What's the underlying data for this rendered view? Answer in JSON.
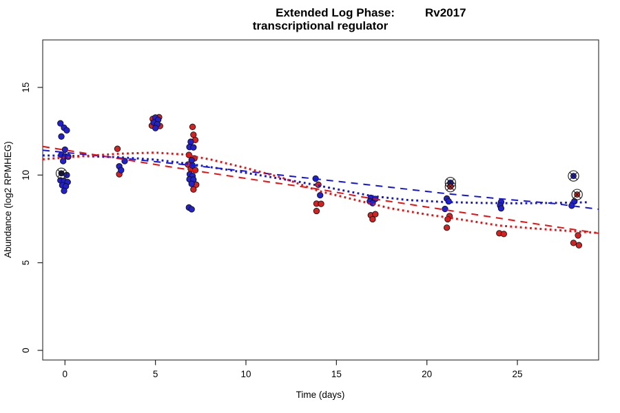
{
  "title": {
    "prefix": "Extended Log Phase:",
    "gene": "Rv2017",
    "subtitle": "transcriptional regulator"
  },
  "chart_data": {
    "type": "scatter",
    "title": "Extended Log Phase: Rv2017 — transcriptional regulator",
    "xlabel": "Time  (days)",
    "ylabel": "Abundance  (log2 RPMHEG)",
    "xlim": [
      -1.25,
      29.5
    ],
    "ylim": [
      -0.55,
      17.7
    ],
    "x_ticks": [
      0,
      5,
      10,
      15,
      20,
      25
    ],
    "y_ticks": [
      0,
      5,
      10,
      15
    ],
    "grid": false,
    "legend": "none",
    "colors": {
      "red_point": "#d92020",
      "blue_point": "#2121d2",
      "dark_point": "#15154a",
      "red_line": "#ee0e0e",
      "blue_line": "#1414e0",
      "marker_stroke": "#111111"
    },
    "series": [
      {
        "name": "red-samples",
        "marker": "filled-circle",
        "color_key": "red_point",
        "points": [
          [
            2.9,
            11.5
          ],
          [
            3.0,
            10.05
          ],
          [
            4.85,
            13.2
          ],
          [
            5.2,
            13.3
          ],
          [
            4.8,
            12.82
          ],
          [
            5.25,
            12.8
          ],
          [
            7.05,
            12.75
          ],
          [
            7.1,
            12.3
          ],
          [
            7.2,
            12.0
          ],
          [
            6.85,
            11.15
          ],
          [
            7.15,
            10.95
          ],
          [
            6.8,
            10.6
          ],
          [
            6.95,
            10.35
          ],
          [
            7.2,
            10.28
          ],
          [
            7.25,
            9.45
          ],
          [
            7.1,
            9.18
          ],
          [
            14.0,
            9.45
          ],
          [
            13.9,
            8.37
          ],
          [
            14.15,
            8.36
          ],
          [
            13.9,
            7.95
          ],
          [
            16.9,
            7.71
          ],
          [
            17.15,
            7.77
          ],
          [
            17.0,
            7.48
          ],
          [
            21.25,
            7.66
          ],
          [
            21.15,
            7.48
          ],
          [
            21.1,
            7.0
          ],
          [
            24.0,
            6.68
          ],
          [
            24.25,
            6.64
          ],
          [
            28.35,
            6.56
          ],
          [
            28.1,
            6.13
          ],
          [
            28.4,
            6.0
          ]
        ]
      },
      {
        "name": "blue-samples",
        "marker": "filled-circle",
        "color_key": "blue_point",
        "points": [
          [
            -0.25,
            12.95
          ],
          [
            -0.05,
            12.7
          ],
          [
            0.1,
            12.55
          ],
          [
            -0.2,
            12.2
          ],
          [
            0.0,
            11.45
          ],
          [
            -0.2,
            11.15
          ],
          [
            0.0,
            11.07
          ],
          [
            0.18,
            11.05
          ],
          [
            -0.1,
            10.8
          ],
          [
            0.1,
            10.0
          ],
          [
            -0.25,
            9.7
          ],
          [
            -0.05,
            9.66
          ],
          [
            0.15,
            9.6
          ],
          [
            -0.15,
            9.42
          ],
          [
            0.05,
            9.36
          ],
          [
            -0.05,
            9.1
          ],
          [
            3.3,
            10.8
          ],
          [
            3.0,
            10.5
          ],
          [
            3.1,
            10.28
          ],
          [
            5.0,
            13.28
          ],
          [
            5.15,
            13.15
          ],
          [
            4.9,
            13.0
          ],
          [
            5.1,
            12.9
          ],
          [
            5.0,
            12.68
          ],
          [
            6.95,
            11.9
          ],
          [
            6.88,
            11.6
          ],
          [
            7.1,
            11.58
          ],
          [
            7.0,
            10.85
          ],
          [
            7.05,
            10.55
          ],
          [
            6.9,
            10.05
          ],
          [
            7.05,
            9.95
          ],
          [
            6.88,
            9.76
          ],
          [
            7.1,
            9.74
          ],
          [
            7.0,
            9.5
          ],
          [
            6.85,
            8.15
          ],
          [
            7.0,
            8.05
          ],
          [
            13.85,
            9.8
          ],
          [
            14.1,
            8.85
          ],
          [
            16.9,
            8.7
          ],
          [
            17.15,
            8.64
          ],
          [
            16.85,
            8.5
          ],
          [
            17.0,
            8.4
          ],
          [
            21.1,
            8.66
          ],
          [
            21.2,
            8.5
          ],
          [
            21.0,
            8.07
          ],
          [
            24.1,
            8.46
          ],
          [
            24.05,
            8.26
          ],
          [
            24.1,
            8.1
          ],
          [
            28.15,
            8.5
          ],
          [
            28.0,
            8.25
          ]
        ]
      },
      {
        "name": "flagged-outliers",
        "marker": "circled-cross",
        "points": [
          [
            -0.2,
            10.1,
            "dark_point"
          ],
          [
            21.3,
            9.57,
            "blue_point"
          ],
          [
            21.3,
            9.34,
            "red_point"
          ],
          [
            28.1,
            9.95,
            "blue_point"
          ],
          [
            28.3,
            8.89,
            "red_point"
          ]
        ]
      }
    ],
    "trend_lines": [
      {
        "name": "blue-dashed-fit",
        "color_key": "blue_line",
        "style": "dashed",
        "points": [
          [
            -1.23,
            11.42
          ],
          [
            3,
            10.98
          ],
          [
            7,
            10.55
          ],
          [
            10,
            10.22
          ],
          [
            14,
            9.76
          ],
          [
            17,
            9.42
          ],
          [
            21,
            8.95
          ],
          [
            24,
            8.65
          ],
          [
            27,
            8.38
          ],
          [
            29.5,
            8.05
          ]
        ]
      },
      {
        "name": "red-dashed-fit",
        "color_key": "red_line",
        "style": "dashed",
        "points": [
          [
            -1.23,
            11.63
          ],
          [
            2,
            11.1
          ],
          [
            5,
            10.6
          ],
          [
            8,
            10.12
          ],
          [
            11,
            9.65
          ],
          [
            14,
            9.2
          ],
          [
            17,
            8.65
          ],
          [
            20,
            8.18
          ],
          [
            23,
            7.7
          ],
          [
            26,
            7.22
          ],
          [
            29.5,
            6.68
          ]
        ]
      },
      {
        "name": "blue-dotted-fit",
        "color_key": "blue_line",
        "style": "dotted",
        "points": [
          [
            -1.23,
            11.12
          ],
          [
            1,
            11.08
          ],
          [
            3,
            11.02
          ],
          [
            5,
            10.88
          ],
          [
            7,
            10.62
          ],
          [
            9,
            10.3
          ],
          [
            11,
            9.95
          ],
          [
            13,
            9.6
          ],
          [
            15,
            9.2
          ],
          [
            17,
            8.8
          ],
          [
            19,
            8.57
          ],
          [
            21,
            8.46
          ],
          [
            23,
            8.41
          ],
          [
            25,
            8.39
          ],
          [
            27,
            8.41
          ],
          [
            29,
            8.45
          ]
        ]
      },
      {
        "name": "red-dotted-fit",
        "color_key": "red_line",
        "style": "dotted",
        "points": [
          [
            -1.23,
            10.9
          ],
          [
            1,
            11.08
          ],
          [
            3,
            11.22
          ],
          [
            5,
            11.28
          ],
          [
            6.5,
            11.18
          ],
          [
            8,
            10.9
          ],
          [
            10,
            10.4
          ],
          [
            12,
            9.85
          ],
          [
            14,
            9.1
          ],
          [
            16,
            8.6
          ],
          [
            18,
            8.1
          ],
          [
            20,
            7.75
          ],
          [
            22,
            7.45
          ],
          [
            24,
            7.12
          ],
          [
            26,
            6.95
          ],
          [
            28,
            6.8
          ],
          [
            29.5,
            6.7
          ]
        ]
      }
    ]
  }
}
